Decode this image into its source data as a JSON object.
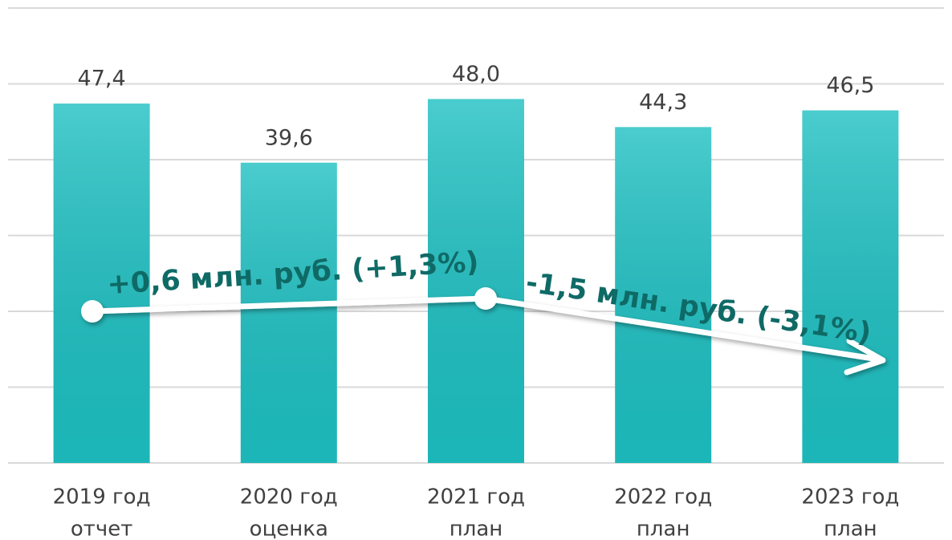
{
  "chart_data": {
    "type": "bar",
    "categories": [
      [
        "2019 год",
        "отчет"
      ],
      [
        "2020 год",
        "оценка"
      ],
      [
        "2021 год",
        "план"
      ],
      [
        "2022 год",
        "план"
      ],
      [
        "2023 год",
        "план"
      ]
    ],
    "values": [
      47.4,
      39.6,
      48.0,
      44.3,
      46.5
    ],
    "value_labels": [
      "47,4",
      "39,6",
      "48,0",
      "44,3",
      "46,5"
    ],
    "color": "#1ec0c2",
    "ylim": [
      0,
      60
    ],
    "yticks": [
      0,
      10,
      20,
      30,
      40,
      50,
      60
    ],
    "grid": true,
    "annotations": [
      "+0,6 млн. руб. (+1,3%)",
      "-1,5 млн. руб. (-3,1%)"
    ]
  }
}
